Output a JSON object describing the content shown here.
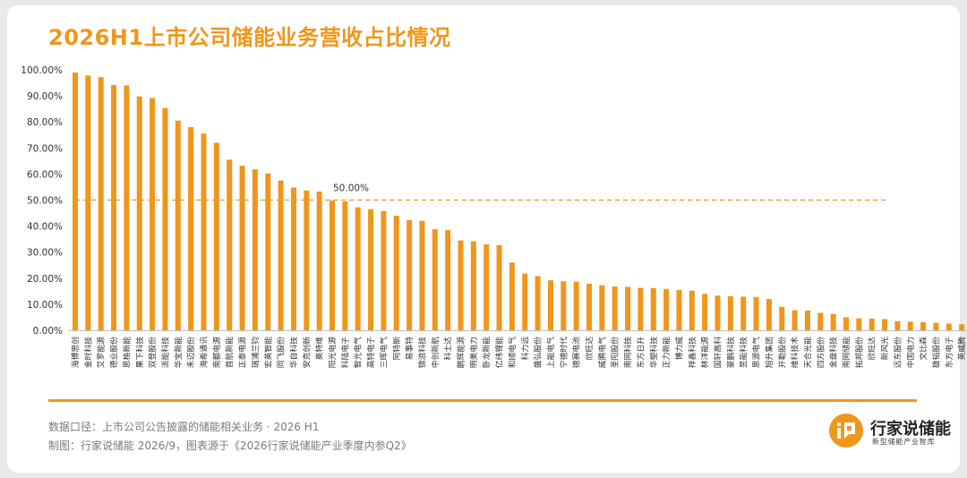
{
  "page": {
    "title": "2026H1上市公司储能业务营收占比情况",
    "footer_note1": "数据口径：上市公司公告披露的储能相关业务 · 2026 H1",
    "footer_note2": "制图：行家说储能 2026/9，图表源于《2026行家说储能产业季度内参Q2》",
    "brand_name": "行家说储能",
    "brand_tagline": "新型储能产业智库",
    "logo_icon": "brand-logo-icon",
    "accent_color": "#f0961c"
  },
  "chart_data": {
    "type": "bar",
    "title": "2026H1上市公司储能业务营收占比情况",
    "xlabel": "",
    "ylabel": "",
    "ylim": [
      0,
      100
    ],
    "y_ticks": [
      "100.00%",
      "90.00%",
      "80.00%",
      "70.00%",
      "60.00%",
      "50.00%",
      "40.00%",
      "30.00%",
      "20.00%",
      "10.00%",
      "0.00%"
    ],
    "y_tick_values": [
      100,
      90,
      80,
      70,
      60,
      50,
      40,
      30,
      20,
      10,
      0
    ],
    "reference_line": {
      "value": 50,
      "label": "50.00%"
    },
    "grid": false,
    "bar_color": "#f0961c",
    "categories": [
      "海博思创",
      "金时科技",
      "艾罗能源",
      "德业股份",
      "思格新能",
      "果下科技",
      "双登股份",
      "派能科技",
      "华宝新能",
      "禾迈股份",
      "海希通讯",
      "南都电源",
      "首航新能",
      "正泰电源",
      "瑞浦兰钧",
      "宏英智能",
      "同飞股份",
      "华自科技",
      "安克创新",
      "奥特维",
      "阳光电源",
      "科陆电子",
      "智光电气",
      "高特电子",
      "三晖电气",
      "阿特斯",
      "易事特",
      "锦浪科技",
      "中创新航",
      "科士达",
      "鹏辉能源",
      "明美电力",
      "卧龙新能",
      "亿纬锂能",
      "和顺电气",
      "科力远",
      "盛弘股份",
      "上能电气",
      "宁德时代",
      "德赛电池",
      "欣旺达",
      "威腾电气",
      "圣阳股份",
      "南网科技",
      "东方日升",
      "华塑科技",
      "正力新能",
      "博力威",
      "祥鑫科技",
      "林洋能源",
      "国轩高科",
      "豪鹏科技",
      "昱能科技",
      "思源电气",
      "旭升集团",
      "开勒股份",
      "维科技术",
      "天合光能",
      "四方股份",
      "金盘科技",
      "南网储能",
      "拓邦股份",
      "欣旺达",
      "新风光",
      "远东股份",
      "中国电力",
      "文比森",
      "雄韬股份",
      "东方电子",
      "英威腾"
    ],
    "values": [
      99.0,
      97.8,
      97.2,
      94.2,
      94.0,
      89.8,
      89.2,
      85.3,
      80.5,
      78.0,
      75.5,
      72.0,
      65.5,
      63.2,
      61.8,
      60.2,
      57.5,
      54.8,
      53.7,
      53.3,
      49.8,
      49.5,
      47.2,
      46.5,
      45.8,
      44.0,
      42.3,
      42.0,
      38.8,
      38.5,
      34.5,
      34.2,
      33.0,
      32.7,
      26.0,
      21.8,
      20.8,
      19.2,
      18.8,
      18.6,
      17.9,
      17.3,
      16.8,
      16.7,
      16.3,
      16.2,
      15.8,
      15.5,
      15.2,
      14.0,
      13.3,
      13.1,
      12.9,
      12.8,
      12.0,
      9.0,
      7.7,
      7.6,
      6.7,
      6.3,
      5.0,
      4.6,
      4.5,
      4.3,
      3.5,
      3.3,
      3.1,
      2.9,
      2.6,
      2.3
    ]
  }
}
